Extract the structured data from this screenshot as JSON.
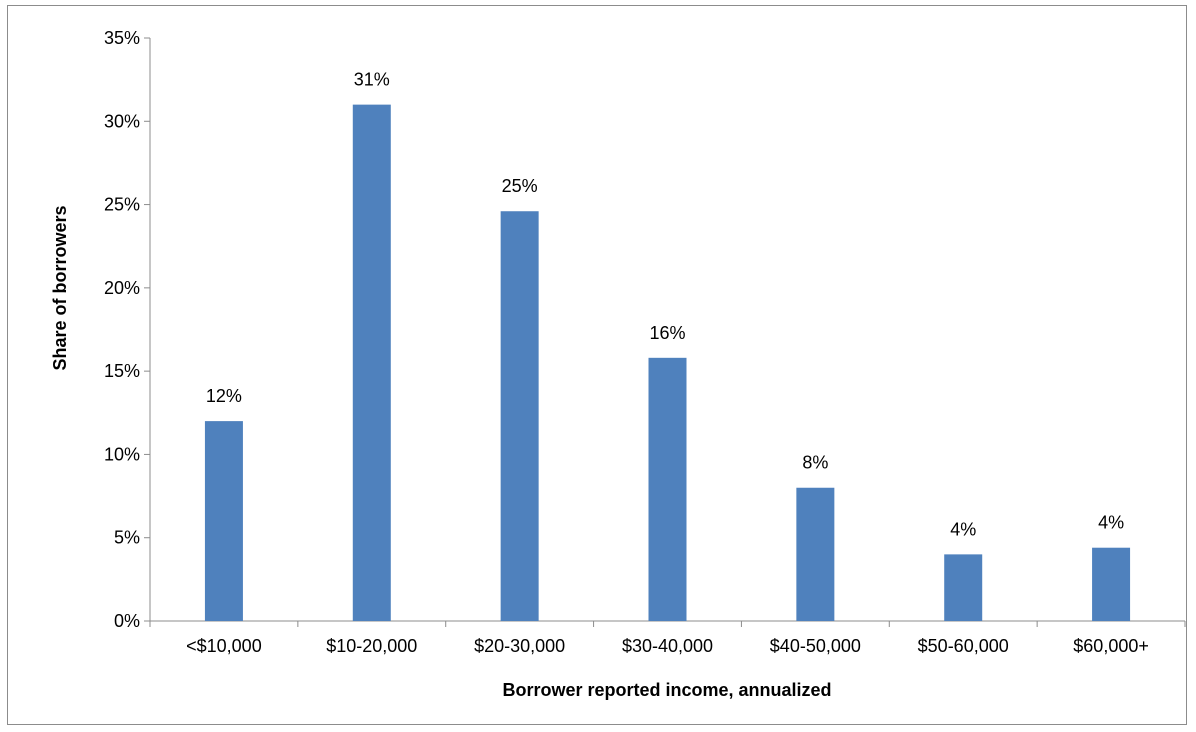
{
  "chart_data": {
    "type": "bar",
    "title": "",
    "xlabel": "Borrower reported income, annualized",
    "ylabel": "Share of borrowers",
    "categories": [
      "<$10,000",
      "$10-20,000",
      "$20-30,000",
      "$30-40,000",
      "$40-50,000",
      "$50-60,000",
      "$60,000+"
    ],
    "values": [
      12.0,
      31.0,
      24.6,
      15.8,
      8.0,
      4.0,
      4.4
    ],
    "data_labels": [
      "12%",
      "31%",
      "25%",
      "16%",
      "8%",
      "4%",
      "4%"
    ],
    "ylim": [
      0,
      35
    ],
    "yticks": [
      0,
      5,
      10,
      15,
      20,
      25,
      30,
      35
    ],
    "ytick_labels": [
      "0%",
      "5%",
      "10%",
      "15%",
      "20%",
      "25%",
      "30%",
      "35%"
    ],
    "grid": false,
    "legend": "none",
    "bar_color": "#4f81bd"
  }
}
